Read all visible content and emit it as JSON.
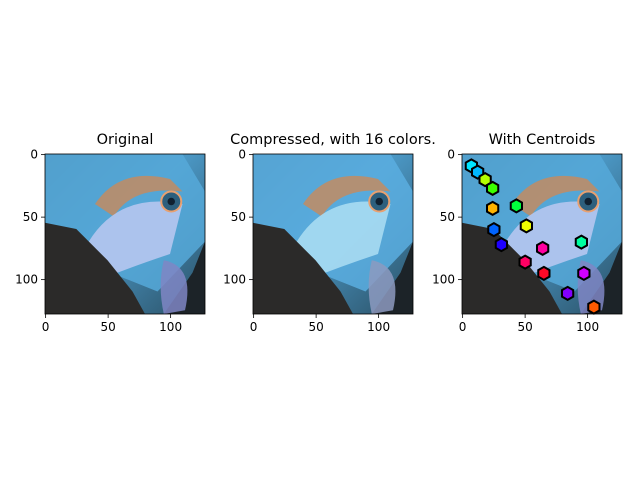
{
  "chart_data": [
    {
      "type": "image",
      "title": "Original",
      "x_ticks": [
        0,
        50,
        100
      ],
      "y_ticks": [
        0,
        50,
        100
      ],
      "xlim": [
        -0.5,
        127.5
      ],
      "ylim": [
        127.5,
        -0.5
      ]
    },
    {
      "type": "image",
      "title": "Compressed, with 16 colors.",
      "x_ticks": [
        0,
        50,
        100
      ],
      "y_ticks": [
        0,
        50,
        100
      ],
      "xlim": [
        -0.5,
        127.5
      ],
      "ylim": [
        127.5,
        -0.5
      ]
    },
    {
      "type": "scatter",
      "title": "With Centroids",
      "x_ticks": [
        0,
        50,
        100
      ],
      "y_ticks": [
        0,
        50,
        100
      ],
      "xlim": [
        -0.5,
        127.5
      ],
      "ylim": [
        127.5,
        -0.5
      ],
      "marker": "hexagon",
      "points": [
        {
          "x": 7,
          "y": 9,
          "color": "#00e5ff"
        },
        {
          "x": 12,
          "y": 14,
          "color": "#00b8ff"
        },
        {
          "x": 18,
          "y": 20,
          "color": "#b4ff00"
        },
        {
          "x": 24,
          "y": 27,
          "color": "#3cff00"
        },
        {
          "x": 24,
          "y": 43,
          "color": "#ffb400"
        },
        {
          "x": 25,
          "y": 60,
          "color": "#0064ff"
        },
        {
          "x": 31,
          "y": 72,
          "color": "#1e00ff"
        },
        {
          "x": 43,
          "y": 41,
          "color": "#00ff3c"
        },
        {
          "x": 51,
          "y": 57,
          "color": "#eeff00"
        },
        {
          "x": 50,
          "y": 86,
          "color": "#ff0064"
        },
        {
          "x": 64,
          "y": 75,
          "color": "#ff00a0"
        },
        {
          "x": 65,
          "y": 95,
          "color": "#ff0a28"
        },
        {
          "x": 95,
          "y": 70,
          "color": "#00ffa0"
        },
        {
          "x": 97,
          "y": 95,
          "color": "#d200ff"
        },
        {
          "x": 84,
          "y": 111,
          "color": "#8200ff"
        },
        {
          "x": 105,
          "y": 122,
          "color": "#ff5a00"
        }
      ]
    }
  ]
}
